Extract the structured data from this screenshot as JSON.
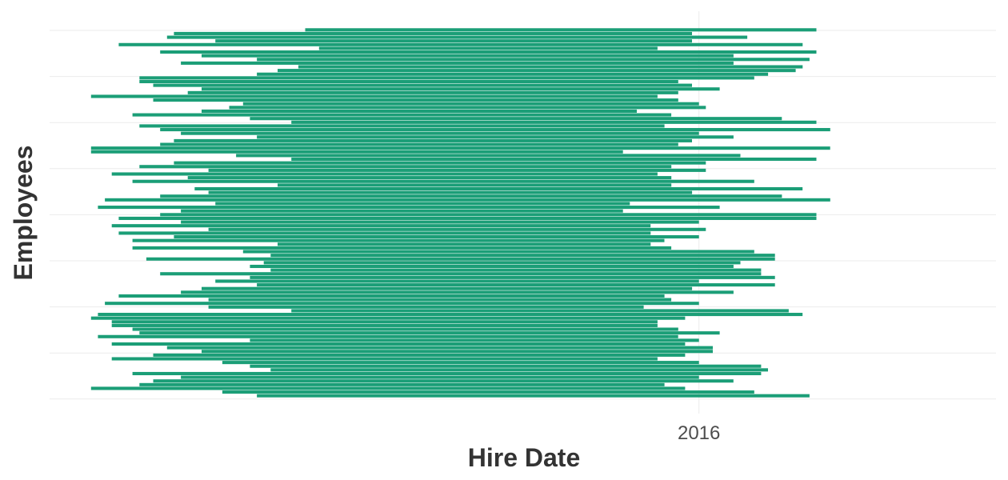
{
  "chart_data": {
    "type": "bar",
    "orientation": "horizontal",
    "title": "",
    "xlabel": "Hire Date",
    "ylabel": "Employees",
    "x_unit": "year",
    "xlim": [
      2006.6,
      2020.3
    ],
    "x_ticks": [
      2016
    ],
    "x_tick_labels": [
      "2016"
    ],
    "grid": true,
    "legend": "none",
    "bar_color": "#1b9e77",
    "grid_color": "#ebebeb",
    "series": [
      {
        "values": [
          [
            2010.3,
            2017.7
          ],
          [
            2008.4,
            2015.9
          ],
          [
            2008.3,
            2016.7
          ],
          [
            2009.0,
            2015.9
          ],
          [
            2007.6,
            2017.5
          ],
          [
            2010.5,
            2015.4
          ],
          [
            2008.2,
            2017.7
          ],
          [
            2008.8,
            2016.5
          ],
          [
            2009.6,
            2017.6
          ],
          [
            2008.5,
            2016.5
          ],
          [
            2010.2,
            2017.5
          ],
          [
            2009.9,
            2017.4
          ],
          [
            2009.6,
            2017.0
          ],
          [
            2007.9,
            2016.8
          ],
          [
            2007.9,
            2015.7
          ],
          [
            2008.1,
            2015.9
          ],
          [
            2008.8,
            2016.3
          ],
          [
            2008.6,
            2015.7
          ],
          [
            2007.2,
            2015.4
          ],
          [
            2008.1,
            2015.7
          ],
          [
            2009.4,
            2016.0
          ],
          [
            2009.2,
            2016.1
          ],
          [
            2008.8,
            2015.1
          ],
          [
            2007.8,
            2015.6
          ],
          [
            2009.5,
            2017.2
          ],
          [
            2010.1,
            2017.7
          ],
          [
            2007.9,
            2015.5
          ],
          [
            2008.2,
            2017.9
          ],
          [
            2008.5,
            2016.0
          ],
          [
            2009.6,
            2016.5
          ],
          [
            2008.4,
            2015.9
          ],
          [
            2008.2,
            2015.7
          ],
          [
            2007.2,
            2017.9
          ],
          [
            2007.2,
            2014.9
          ],
          [
            2009.3,
            2016.6
          ],
          [
            2010.1,
            2017.7
          ],
          [
            2008.4,
            2016.1
          ],
          [
            2007.9,
            2015.6
          ],
          [
            2008.9,
            2016.1
          ],
          [
            2007.5,
            2015.4
          ],
          [
            2008.6,
            2015.6
          ],
          [
            2007.8,
            2016.8
          ],
          [
            2009.9,
            2015.6
          ],
          [
            2008.7,
            2017.5
          ],
          [
            2008.9,
            2015.9
          ],
          [
            2008.2,
            2017.2
          ],
          [
            2007.4,
            2017.9
          ],
          [
            2009.0,
            2015.0
          ],
          [
            2007.3,
            2016.3
          ],
          [
            2008.5,
            2014.9
          ],
          [
            2008.2,
            2017.7
          ],
          [
            2007.6,
            2017.7
          ],
          [
            2008.5,
            2016.0
          ],
          [
            2007.5,
            2015.3
          ],
          [
            2008.9,
            2016.1
          ],
          [
            2007.6,
            2015.3
          ],
          [
            2008.4,
            2016.0
          ],
          [
            2007.8,
            2015.5
          ],
          [
            2009.9,
            2015.3
          ],
          [
            2007.8,
            2015.6
          ],
          [
            2009.4,
            2016.8
          ],
          [
            2009.8,
            2017.1
          ],
          [
            2008.0,
            2017.1
          ],
          [
            2009.7,
            2016.6
          ],
          [
            2009.5,
            2016.5
          ],
          [
            2009.8,
            2016.9
          ],
          [
            2008.2,
            2016.9
          ],
          [
            2009.5,
            2017.1
          ],
          [
            2009.0,
            2016.0
          ],
          [
            2009.6,
            2017.1
          ],
          [
            2008.8,
            2015.9
          ],
          [
            2008.5,
            2016.5
          ],
          [
            2007.6,
            2015.5
          ],
          [
            2008.9,
            2015.6
          ],
          [
            2007.4,
            2016.0
          ],
          [
            2008.9,
            2015.2
          ],
          [
            2010.1,
            2017.3
          ],
          [
            2007.3,
            2017.5
          ],
          [
            2007.2,
            2015.8
          ],
          [
            2007.5,
            2015.4
          ],
          [
            2007.5,
            2015.4
          ],
          [
            2007.8,
            2015.7
          ],
          [
            2007.9,
            2016.3
          ],
          [
            2007.3,
            2015.7
          ],
          [
            2009.5,
            2016.0
          ],
          [
            2007.5,
            2015.8
          ],
          [
            2008.3,
            2016.2
          ],
          [
            2008.8,
            2016.2
          ],
          [
            2008.1,
            2015.8
          ],
          [
            2007.5,
            2015.4
          ],
          [
            2009.1,
            2016.0
          ],
          [
            2009.5,
            2016.9
          ],
          [
            2009.8,
            2017.0
          ],
          [
            2007.8,
            2016.9
          ],
          [
            2008.5,
            2016.0
          ],
          [
            2008.1,
            2016.5
          ],
          [
            2007.9,
            2015.5
          ],
          [
            2007.2,
            2015.8
          ],
          [
            2009.1,
            2016.8
          ],
          [
            2009.6,
            2017.6
          ]
        ]
      }
    ]
  }
}
